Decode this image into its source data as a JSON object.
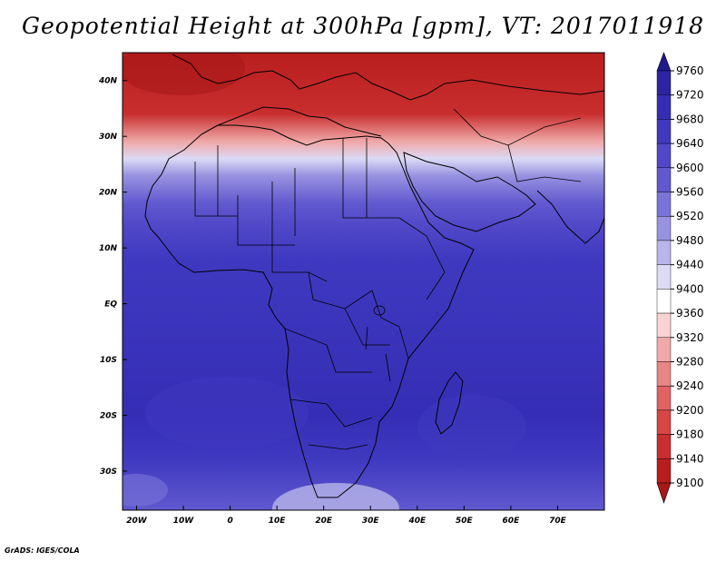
{
  "title": "Geopotential Height at 300hPa [gpm], VT: 2017011918",
  "credit": "GrADS: IGES/COLA",
  "chart_data": {
    "type": "heatmap",
    "title": "Geopotential Height at 300hPa [gpm], VT: 2017011918",
    "variable": "Geopotential Height",
    "level": "300hPa",
    "units": "gpm",
    "valid_time": "2017011918",
    "lon_range": [
      -23,
      80
    ],
    "lat_range": [
      -37,
      45
    ],
    "x_tick_labels": [
      "20W",
      "10W",
      "0",
      "10E",
      "20E",
      "30E",
      "40E",
      "50E",
      "60E",
      "70E"
    ],
    "x_tick_values": [
      -20,
      -10,
      0,
      10,
      20,
      30,
      40,
      50,
      60,
      70
    ],
    "y_tick_labels": [
      "40N",
      "30N",
      "20N",
      "10N",
      "EQ",
      "10S",
      "20S",
      "30S"
    ],
    "y_tick_values": [
      40,
      30,
      20,
      10,
      0,
      -10,
      -20,
      -30
    ],
    "colorbar_levels": [
      9760,
      9720,
      9680,
      9640,
      9600,
      9560,
      9520,
      9480,
      9440,
      9400,
      9360,
      9320,
      9280,
      9240,
      9200,
      9180,
      9140,
      9100
    ],
    "colorbar_colors": [
      "#1f1a8c",
      "#2b24a3",
      "#352eb5",
      "#3f39c0",
      "#5048c8",
      "#6059cf",
      "#7a74d8",
      "#9893e0",
      "#b8b5ea",
      "#dcdaf5",
      "#ffffff",
      "#f7d3d3",
      "#f0a9a9",
      "#e88585",
      "#e06262",
      "#d74545",
      "#c92e2e",
      "#b81e1e",
      "#a81818"
    ],
    "field_bands": [
      {
        "lat": 45,
        "value": 9100
      },
      {
        "lat": 34,
        "value": 9160
      },
      {
        "lat": 29,
        "value": 9300
      },
      {
        "lat": 26,
        "value": 9400
      },
      {
        "lat": 23,
        "value": 9480
      },
      {
        "lat": 18,
        "value": 9560
      },
      {
        "lat": 14,
        "value": 9620
      },
      {
        "lat": 8,
        "value": 9660
      },
      {
        "lat": -20,
        "value": 9680
      },
      {
        "lat": -28,
        "value": 9640
      },
      {
        "lat": -37,
        "value": 9560
      }
    ]
  }
}
